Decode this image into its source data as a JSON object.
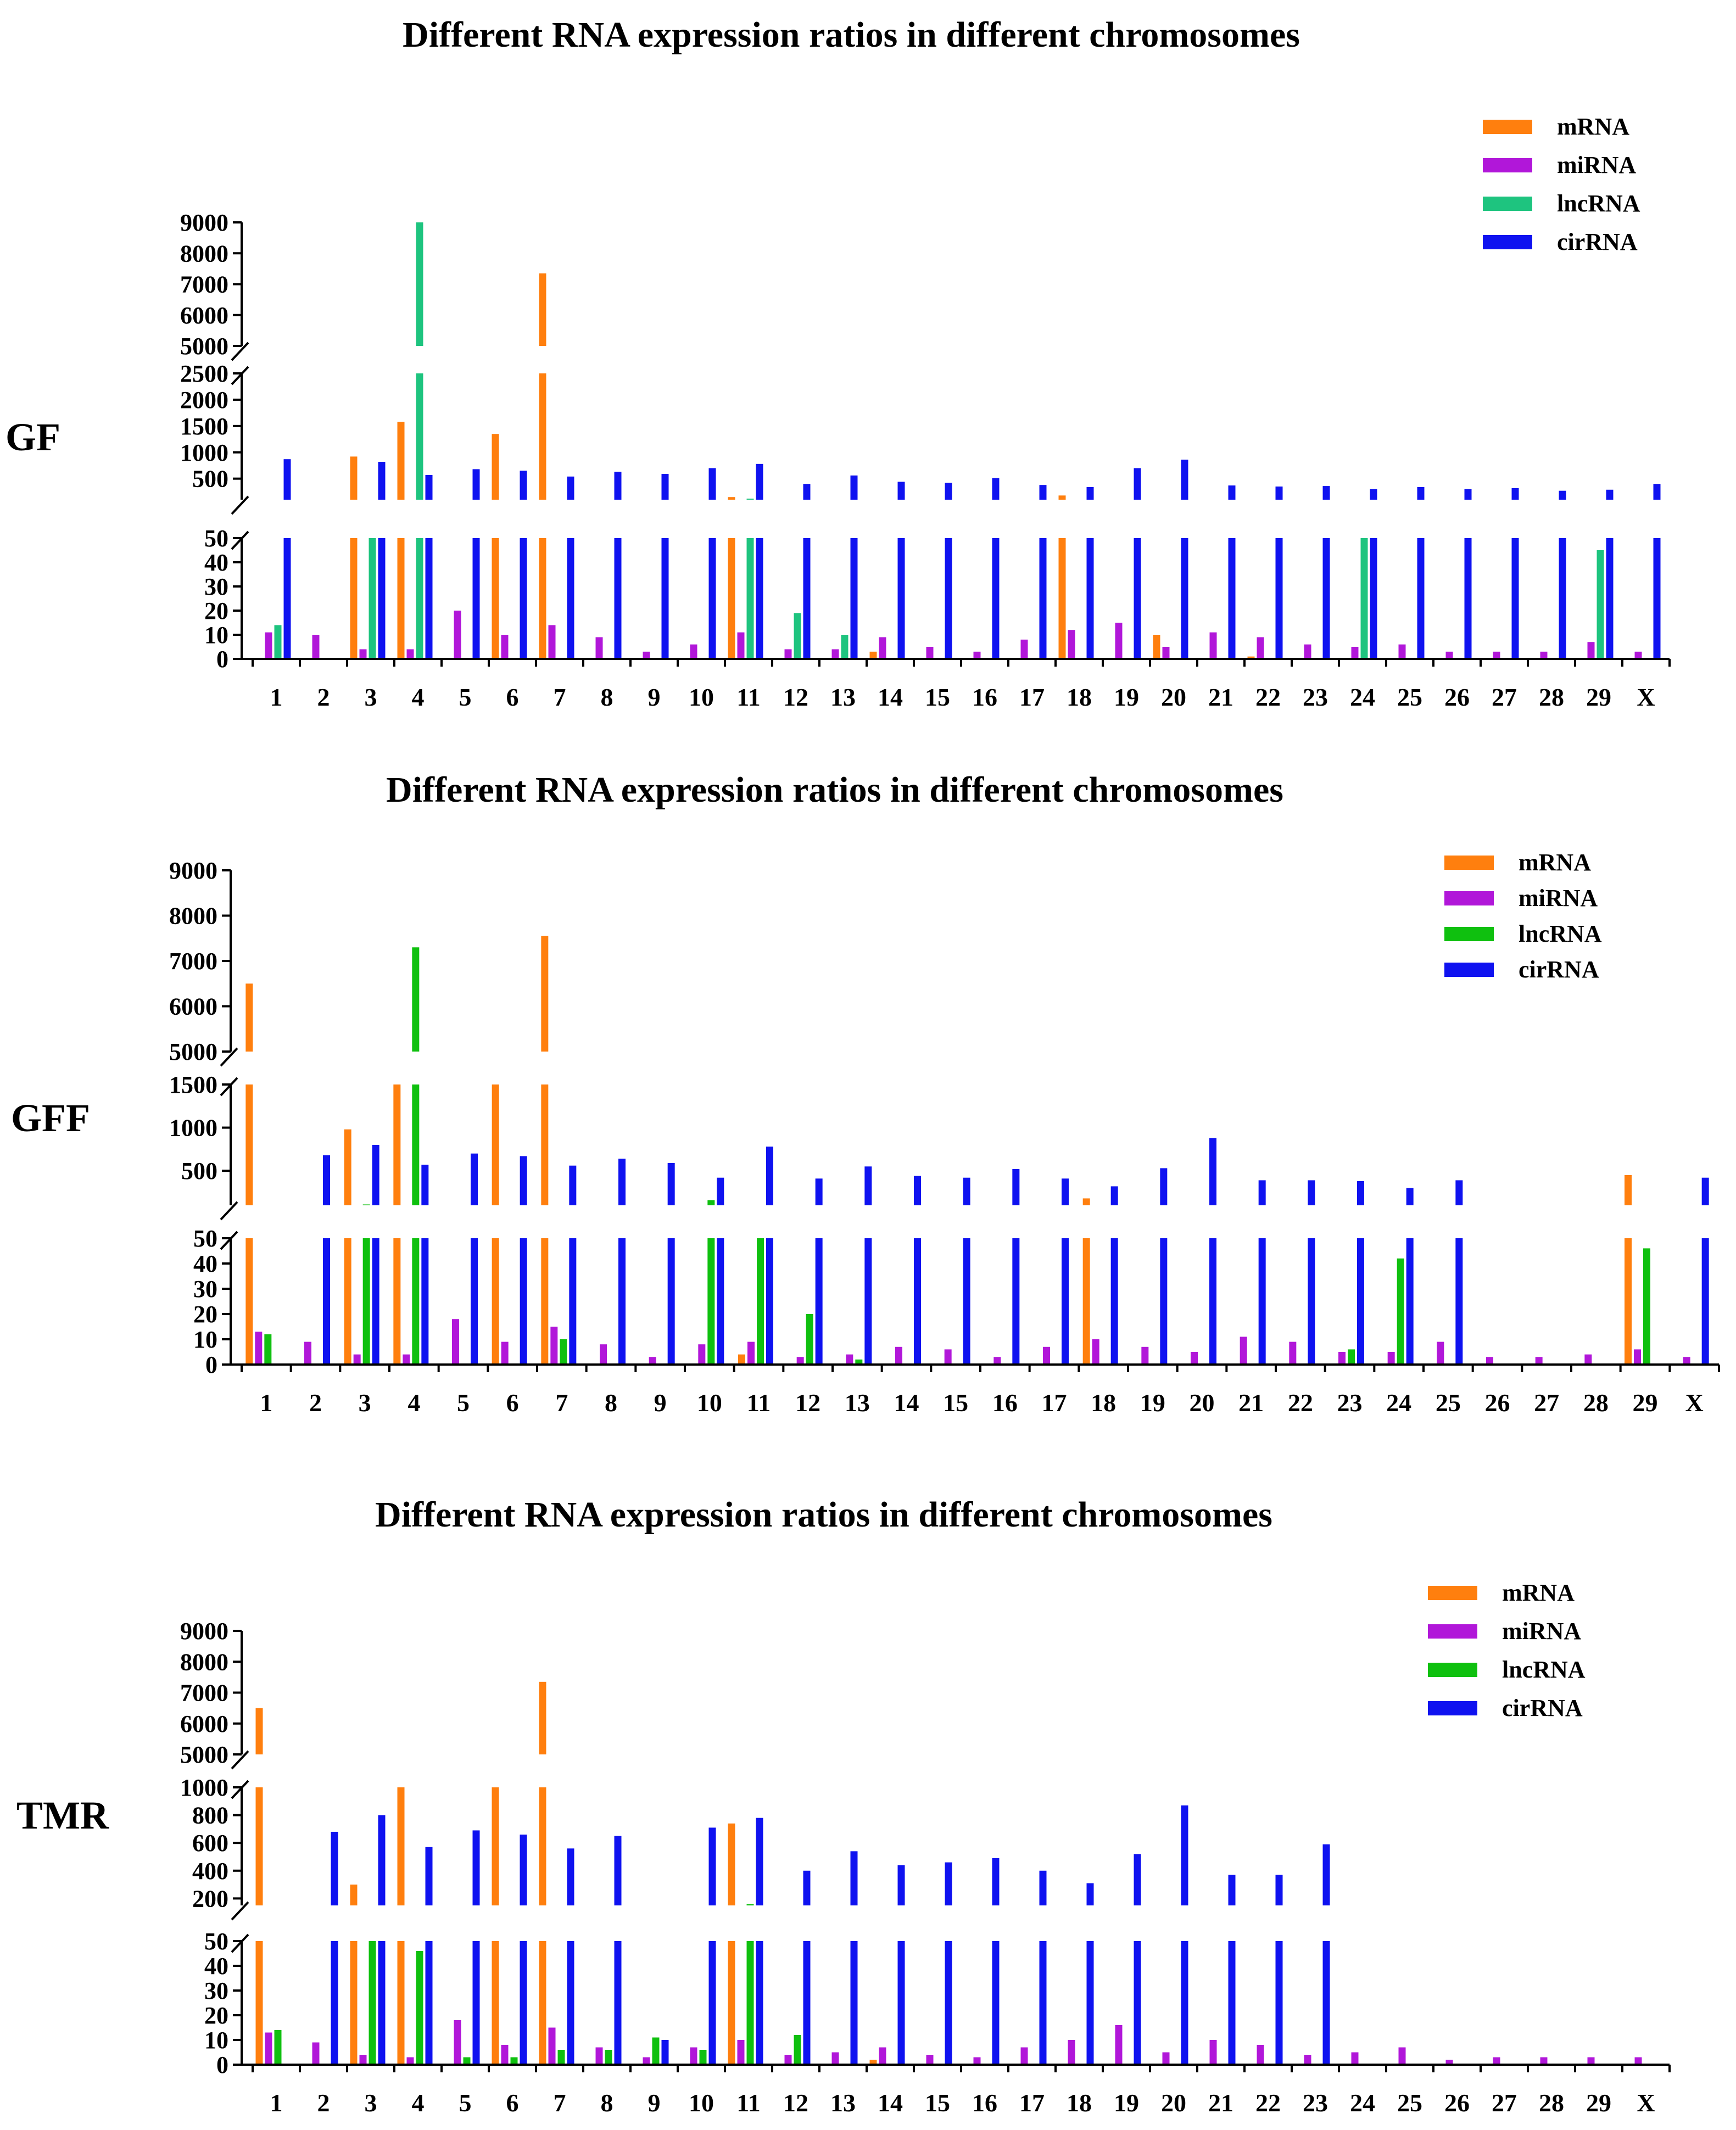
{
  "colors": {
    "mRNA": "#ff7f0e",
    "miRNA": "#b117d9",
    "lncRNA_GF": "#1ec47f",
    "lncRNA": "#0fc00f",
    "cirRNA": "#0f12f0"
  },
  "chart_data": [
    {
      "type": "bar",
      "panel": "GF",
      "title": "Different RNA expression ratios in different chromosomes",
      "categories": [
        "1",
        "2",
        "3",
        "4",
        "5",
        "6",
        "7",
        "8",
        "9",
        "10",
        "11",
        "12",
        "13",
        "14",
        "15",
        "16",
        "17",
        "18",
        "19",
        "20",
        "21",
        "22",
        "23",
        "24",
        "25",
        "26",
        "27",
        "28",
        "29",
        "X"
      ],
      "legend": [
        "mRNA",
        "miRNA",
        "lncRNA",
        "cirRNA"
      ],
      "y_segments": [
        {
          "range": [
            0,
            50
          ],
          "ticks": [
            "0",
            "10",
            "20",
            "30",
            "40",
            "50"
          ]
        },
        {
          "range": [
            100,
            2500
          ],
          "ticks": [
            "500",
            "1000",
            "1500",
            "2000",
            "2500"
          ]
        },
        {
          "range": [
            5000,
            9000
          ],
          "ticks": [
            "5000",
            "6000",
            "7000",
            "8000",
            "9000"
          ]
        }
      ],
      "series": [
        {
          "name": "mRNA",
          "values": [
            0,
            0,
            920,
            1580,
            0,
            1350,
            7350,
            0,
            0,
            0,
            150,
            0,
            0,
            3,
            0,
            0,
            0,
            180,
            0,
            10,
            0,
            1,
            0,
            0,
            0,
            0,
            0,
            0,
            0,
            0
          ]
        },
        {
          "name": "miRNA",
          "values": [
            11,
            10,
            4,
            4,
            20,
            10,
            14,
            9,
            3,
            6,
            11,
            4,
            4,
            9,
            5,
            3,
            8,
            12,
            15,
            5,
            11,
            9,
            6,
            5,
            6,
            3,
            3,
            3,
            7,
            3
          ]
        },
        {
          "name": "lncRNA",
          "values": [
            14,
            0,
            60,
            9000,
            0,
            0,
            0,
            0,
            0,
            0,
            120,
            19,
            10,
            0,
            0,
            0,
            0,
            0,
            0,
            0,
            0,
            0,
            0,
            80,
            0,
            0,
            0,
            0,
            45,
            0
          ]
        },
        {
          "name": "cirRNA",
          "values": [
            870,
            0,
            820,
            570,
            680,
            650,
            540,
            630,
            590,
            700,
            780,
            400,
            560,
            440,
            420,
            510,
            380,
            340,
            700,
            860,
            370,
            350,
            360,
            300,
            340,
            300,
            320,
            270,
            290,
            400
          ]
        }
      ]
    },
    {
      "type": "bar",
      "panel": "GFF",
      "title": "Different RNA expression ratios in different chromosomes",
      "categories": [
        "1",
        "2",
        "3",
        "4",
        "5",
        "6",
        "7",
        "8",
        "9",
        "10",
        "11",
        "12",
        "13",
        "14",
        "15",
        "16",
        "17",
        "18",
        "19",
        "20",
        "21",
        "22",
        "23",
        "24",
        "25",
        "26",
        "27",
        "28",
        "29",
        "X"
      ],
      "legend": [
        "mRNA",
        "miRNA",
        "lncRNA",
        "cirRNA"
      ],
      "y_segments": [
        {
          "range": [
            0,
            50
          ],
          "ticks": [
            "0",
            "10",
            "20",
            "30",
            "40",
            "50"
          ]
        },
        {
          "range": [
            100,
            1500
          ],
          "ticks": [
            "500",
            "1000",
            "1500"
          ]
        },
        {
          "range": [
            5000,
            9000
          ],
          "ticks": [
            "5000",
            "6000",
            "7000",
            "8000",
            "9000"
          ]
        }
      ],
      "series": [
        {
          "name": "mRNA",
          "values": [
            6500,
            0,
            980,
            1500,
            0,
            1500,
            7550,
            0,
            0,
            0,
            4,
            0,
            0,
            0,
            0,
            0,
            0,
            180,
            0,
            0,
            0,
            0,
            0,
            0,
            0,
            0,
            0,
            0,
            450,
            0
          ]
        },
        {
          "name": "miRNA",
          "values": [
            13,
            9,
            4,
            4,
            18,
            9,
            15,
            8,
            3,
            8,
            9,
            3,
            4,
            7,
            6,
            3,
            7,
            10,
            7,
            5,
            11,
            9,
            5,
            5,
            9,
            3,
            3,
            4,
            6,
            3
          ]
        },
        {
          "name": "lncRNA",
          "values": [
            12,
            0,
            110,
            7300,
            0,
            0,
            10,
            0,
            0,
            160,
            80,
            20,
            2,
            0,
            0,
            0,
            0,
            0,
            0,
            0,
            0,
            0,
            6,
            42,
            0,
            0,
            0,
            0,
            46,
            0
          ]
        },
        {
          "name": "cirRNA",
          "values": [
            0,
            680,
            800,
            570,
            700,
            670,
            560,
            640,
            590,
            420,
            780,
            410,
            550,
            440,
            420,
            520,
            410,
            320,
            530,
            880,
            390,
            390,
            380,
            300,
            390,
            0,
            0,
            0,
            0,
            420
          ]
        }
      ]
    },
    {
      "type": "bar",
      "panel": "TMR",
      "title": "Different RNA expression ratios in different chromosomes",
      "categories": [
        "1",
        "2",
        "3",
        "4",
        "5",
        "6",
        "7",
        "8",
        "9",
        "10",
        "11",
        "12",
        "13",
        "14",
        "15",
        "16",
        "17",
        "18",
        "19",
        "20",
        "21",
        "22",
        "23",
        "24",
        "25",
        "26",
        "27",
        "28",
        "29",
        "X"
      ],
      "legend": [
        "mRNA",
        "miRNA",
        "lncRNA",
        "cirRNA"
      ],
      "y_segments": [
        {
          "range": [
            0,
            50
          ],
          "ticks": [
            "0",
            "10",
            "20",
            "30",
            "40",
            "50"
          ]
        },
        {
          "range": [
            150,
            1000
          ],
          "ticks": [
            "200",
            "400",
            "600",
            "800",
            "1000"
          ]
        },
        {
          "range": [
            5000,
            9000
          ],
          "ticks": [
            "5000",
            "6000",
            "7000",
            "8000",
            "9000"
          ]
        }
      ],
      "series": [
        {
          "name": "mRNA",
          "values": [
            6500,
            0,
            300,
            1000,
            0,
            1000,
            7350,
            0,
            0,
            0,
            740,
            0,
            0,
            2,
            0,
            0,
            0,
            0,
            0,
            0,
            0,
            0,
            0,
            0,
            0,
            0,
            0,
            0,
            0,
            0
          ]
        },
        {
          "name": "miRNA",
          "values": [
            13,
            9,
            4,
            3,
            18,
            8,
            15,
            7,
            3,
            7,
            10,
            4,
            5,
            7,
            4,
            3,
            7,
            10,
            16,
            5,
            10,
            8,
            4,
            5,
            7,
            2,
            3,
            3,
            3,
            3
          ]
        },
        {
          "name": "lncRNA",
          "values": [
            14,
            0,
            50,
            46,
            3,
            3,
            6,
            6,
            11,
            6,
            160,
            12,
            0,
            0,
            0,
            0,
            0,
            0,
            0,
            0,
            0,
            0,
            0,
            0,
            0,
            0,
            0,
            0,
            0,
            0
          ]
        },
        {
          "name": "cirRNA",
          "values": [
            0,
            680,
            800,
            570,
            690,
            660,
            560,
            650,
            10,
            710,
            780,
            400,
            540,
            440,
            460,
            490,
            400,
            310,
            520,
            870,
            370,
            370,
            590,
            0,
            0,
            0,
            0,
            0,
            0,
            0
          ]
        }
      ]
    }
  ]
}
